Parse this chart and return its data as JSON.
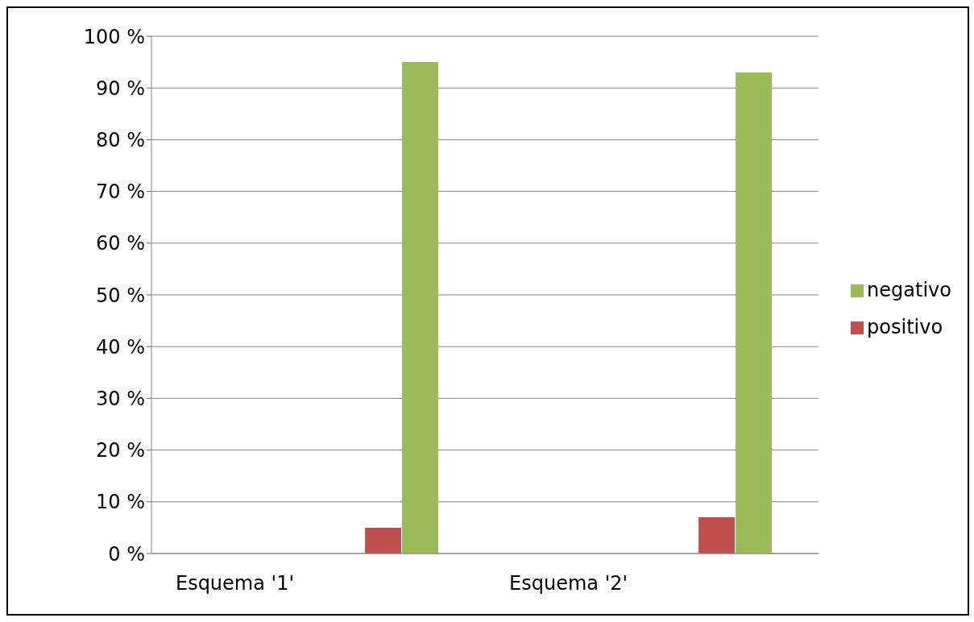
{
  "chart_data": {
    "type": "bar",
    "categories": [
      "Esquema '1'",
      null,
      "Esquema '2'",
      null
    ],
    "series": [
      {
        "name": "positivo",
        "color": "#c0504d",
        "values": [
          null,
          5,
          null,
          7
        ]
      },
      {
        "name": "negativo",
        "color": "#9bbb59",
        "values": [
          null,
          95,
          null,
          93
        ]
      }
    ],
    "ylim": [
      0,
      100
    ],
    "yticks": [
      {
        "value": 0,
        "label": "0 %"
      },
      {
        "value": 10,
        "label": "10 %"
      },
      {
        "value": 20,
        "label": "20 %"
      },
      {
        "value": 30,
        "label": "30 %"
      },
      {
        "value": 40,
        "label": "40 %"
      },
      {
        "value": 50,
        "label": "50 %"
      },
      {
        "value": 60,
        "label": "60 %"
      },
      {
        "value": 70,
        "label": "70 %"
      },
      {
        "value": 80,
        "label": "80 %"
      },
      {
        "value": 90,
        "label": "90 %"
      },
      {
        "value": 100,
        "label": "100 %"
      }
    ],
    "grid": "y",
    "legend": "right"
  }
}
